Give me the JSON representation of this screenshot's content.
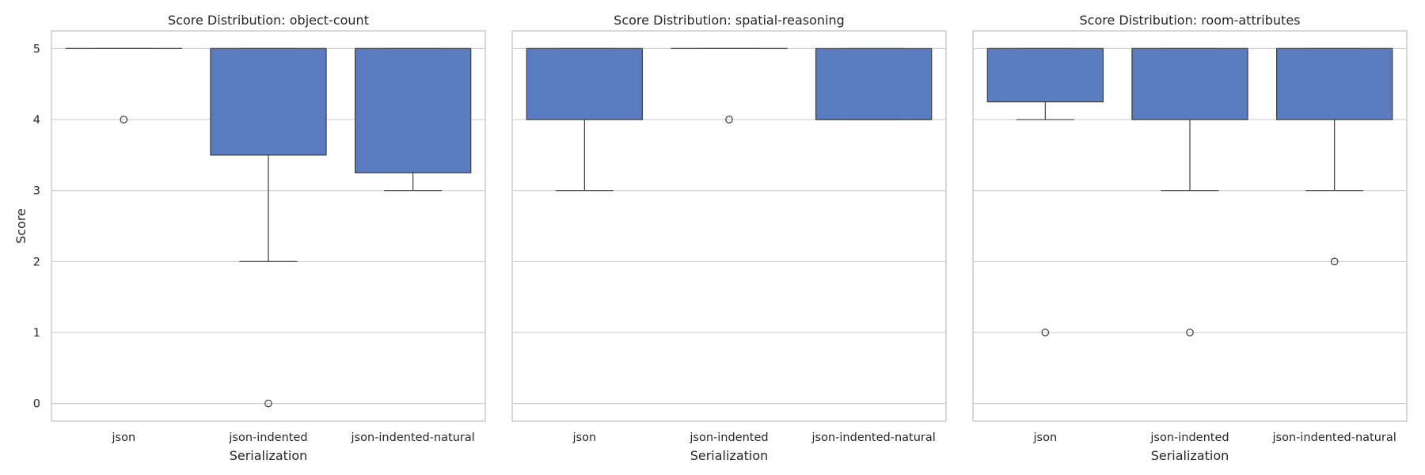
{
  "chart_data": [
    {
      "type": "box",
      "title": "Score Distribution: object-count",
      "xlabel": "Serialization",
      "ylabel": "Score",
      "categories": [
        "json",
        "json-indented",
        "json-indented-natural"
      ],
      "ylim": [
        -0.25,
        5.25
      ],
      "yticks": [
        0,
        1,
        2,
        3,
        4,
        5
      ],
      "grid": true,
      "box_color": "#5a7bc0",
      "boxes": [
        {
          "q1": 5,
          "median": 5,
          "q3": 5,
          "whisker_low": 5,
          "whisker_high": 5,
          "outliers": [
            4
          ]
        },
        {
          "q1": 3.5,
          "median": 5,
          "q3": 5,
          "whisker_low": 2,
          "whisker_high": 5,
          "outliers": [
            0
          ]
        },
        {
          "q1": 3.25,
          "median": 5,
          "q3": 5,
          "whisker_low": 3,
          "whisker_high": 5,
          "outliers": []
        }
      ]
    },
    {
      "type": "box",
      "title": "Score Distribution: spatial-reasoning",
      "xlabel": "Serialization",
      "ylabel": "",
      "categories": [
        "json",
        "json-indented",
        "json-indented-natural"
      ],
      "ylim": [
        -0.25,
        5.25
      ],
      "yticks": [
        0,
        1,
        2,
        3,
        4,
        5
      ],
      "grid": true,
      "box_color": "#5a7bc0",
      "boxes": [
        {
          "q1": 4,
          "median": 5,
          "q3": 5,
          "whisker_low": 3,
          "whisker_high": 5,
          "outliers": []
        },
        {
          "q1": 5,
          "median": 5,
          "q3": 5,
          "whisker_low": 5,
          "whisker_high": 5,
          "outliers": [
            4
          ]
        },
        {
          "q1": 4,
          "median": 4,
          "q3": 5,
          "whisker_low": 4,
          "whisker_high": 5,
          "outliers": []
        }
      ]
    },
    {
      "type": "box",
      "title": "Score Distribution: room-attributes",
      "xlabel": "Serialization",
      "ylabel": "",
      "categories": [
        "json",
        "json-indented",
        "json-indented-natural"
      ],
      "ylim": [
        -0.25,
        5.25
      ],
      "yticks": [
        0,
        1,
        2,
        3,
        4,
        5
      ],
      "grid": true,
      "box_color": "#5a7bc0",
      "boxes": [
        {
          "q1": 4.25,
          "median": 5,
          "q3": 5,
          "whisker_low": 4,
          "whisker_high": 5,
          "outliers": [
            1
          ]
        },
        {
          "q1": 4,
          "median": 5,
          "q3": 5,
          "whisker_low": 3,
          "whisker_high": 5,
          "outliers": [
            1
          ]
        },
        {
          "q1": 4,
          "median": 5,
          "q3": 5,
          "whisker_low": 3,
          "whisker_high": 5,
          "outliers": [
            2
          ]
        }
      ]
    }
  ]
}
